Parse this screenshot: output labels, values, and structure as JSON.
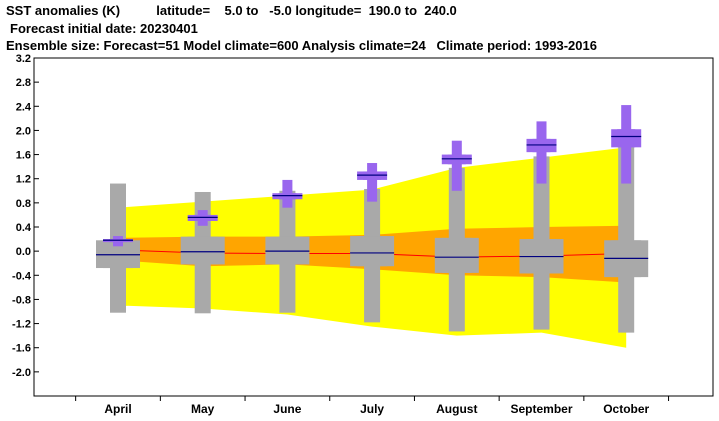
{
  "header": {
    "line1": "SST anomalies (K)          latitude=    5.0 to   -5.0 longitude=  190.0 to  240.0",
    "line2": "Forecast initial date: 20230401",
    "line3": "Ensemble size: Forecast=51 Model climate=600 Analysis climate=24   Climate period: 1993-2016"
  },
  "colors": {
    "outer_band": "#ffff00",
    "inner_band": "#ffa500",
    "median_line": "#ff0000",
    "model_box": "#a9a9a9",
    "analysis_box": "#9966ee",
    "median_tick": "#000080"
  },
  "chart_data": {
    "type": "box-plume",
    "categories": [
      "April",
      "May",
      "June",
      "July",
      "August",
      "September",
      "October"
    ],
    "ylim": [
      -2.4,
      3.2
    ],
    "yticks": [
      "3.2",
      "2.8",
      "2.4",
      "2.0",
      "1.6",
      "1.2",
      "0.8",
      "0.4",
      "0.0",
      "-0.4",
      "-0.8",
      "-1.2",
      "-1.6",
      "-2.0"
    ],
    "xlabel": "",
    "ylabel": "",
    "grid": false,
    "climate_bands": {
      "outer_low": [
        -0.9,
        -0.95,
        -1.05,
        -1.25,
        -1.4,
        -1.35,
        -1.6
      ],
      "outer_high": [
        0.72,
        0.82,
        0.92,
        1.02,
        1.38,
        1.55,
        1.72
      ],
      "inner_low": [
        -0.15,
        -0.25,
        -0.22,
        -0.3,
        -0.4,
        -0.43,
        -0.52
      ],
      "inner_high": [
        0.22,
        0.24,
        0.24,
        0.27,
        0.37,
        0.4,
        0.42
      ]
    },
    "climate_median": [
      0.02,
      -0.03,
      -0.04,
      -0.04,
      -0.1,
      -0.08,
      -0.04
    ],
    "model_climate_boxes": [
      {
        "min": -1.02,
        "p10": -0.28,
        "p25": -0.28,
        "median": -0.06,
        "p75": 0.18,
        "p90": 0.18,
        "max": 1.12
      },
      {
        "min": -1.03,
        "p10": -0.22,
        "p25": -0.22,
        "median": -0.01,
        "p75": 0.24,
        "p90": 0.24,
        "max": 0.98
      },
      {
        "min": -1.02,
        "p10": -0.22,
        "p25": -0.22,
        "median": 0.0,
        "p75": 0.24,
        "p90": 0.24,
        "max": 1.0
      },
      {
        "min": -1.18,
        "p10": -0.25,
        "p25": -0.25,
        "median": -0.03,
        "p75": 0.25,
        "p90": 0.25,
        "max": 1.03
      },
      {
        "min": -1.33,
        "p10": -0.36,
        "p25": -0.36,
        "median": -0.1,
        "p75": 0.22,
        "p90": 0.22,
        "max": 1.38
      },
      {
        "min": -1.3,
        "p10": -0.37,
        "p25": -0.37,
        "median": -0.09,
        "p75": 0.2,
        "p90": 0.2,
        "max": 1.57
      },
      {
        "min": -1.35,
        "p10": -0.43,
        "p25": -0.43,
        "median": -0.12,
        "p75": 0.18,
        "p90": 0.18,
        "max": 1.73
      }
    ],
    "forecast_boxes": [
      {
        "min": 0.08,
        "p10": 0.15,
        "p25": 0.15,
        "median": 0.18,
        "p75": 0.2,
        "p90": 0.2,
        "max": 0.25
      },
      {
        "min": 0.42,
        "p10": 0.5,
        "p25": 0.5,
        "median": 0.56,
        "p75": 0.6,
        "p90": 0.6,
        "max": 0.68
      },
      {
        "min": 0.72,
        "p10": 0.86,
        "p25": 0.86,
        "median": 0.92,
        "p75": 0.96,
        "p90": 0.96,
        "max": 1.18
      },
      {
        "min": 0.82,
        "p10": 1.18,
        "p25": 1.18,
        "median": 1.26,
        "p75": 1.32,
        "p90": 1.32,
        "max": 1.46
      },
      {
        "min": 1.0,
        "p10": 1.44,
        "p25": 1.44,
        "median": 1.53,
        "p75": 1.6,
        "p90": 1.6,
        "max": 1.83
      },
      {
        "min": 1.12,
        "p10": 1.64,
        "p25": 1.64,
        "median": 1.76,
        "p75": 1.86,
        "p90": 1.86,
        "max": 2.15
      },
      {
        "min": 1.12,
        "p10": 1.72,
        "p25": 1.72,
        "median": 1.9,
        "p75": 2.02,
        "p90": 2.02,
        "max": 2.42
      }
    ]
  }
}
